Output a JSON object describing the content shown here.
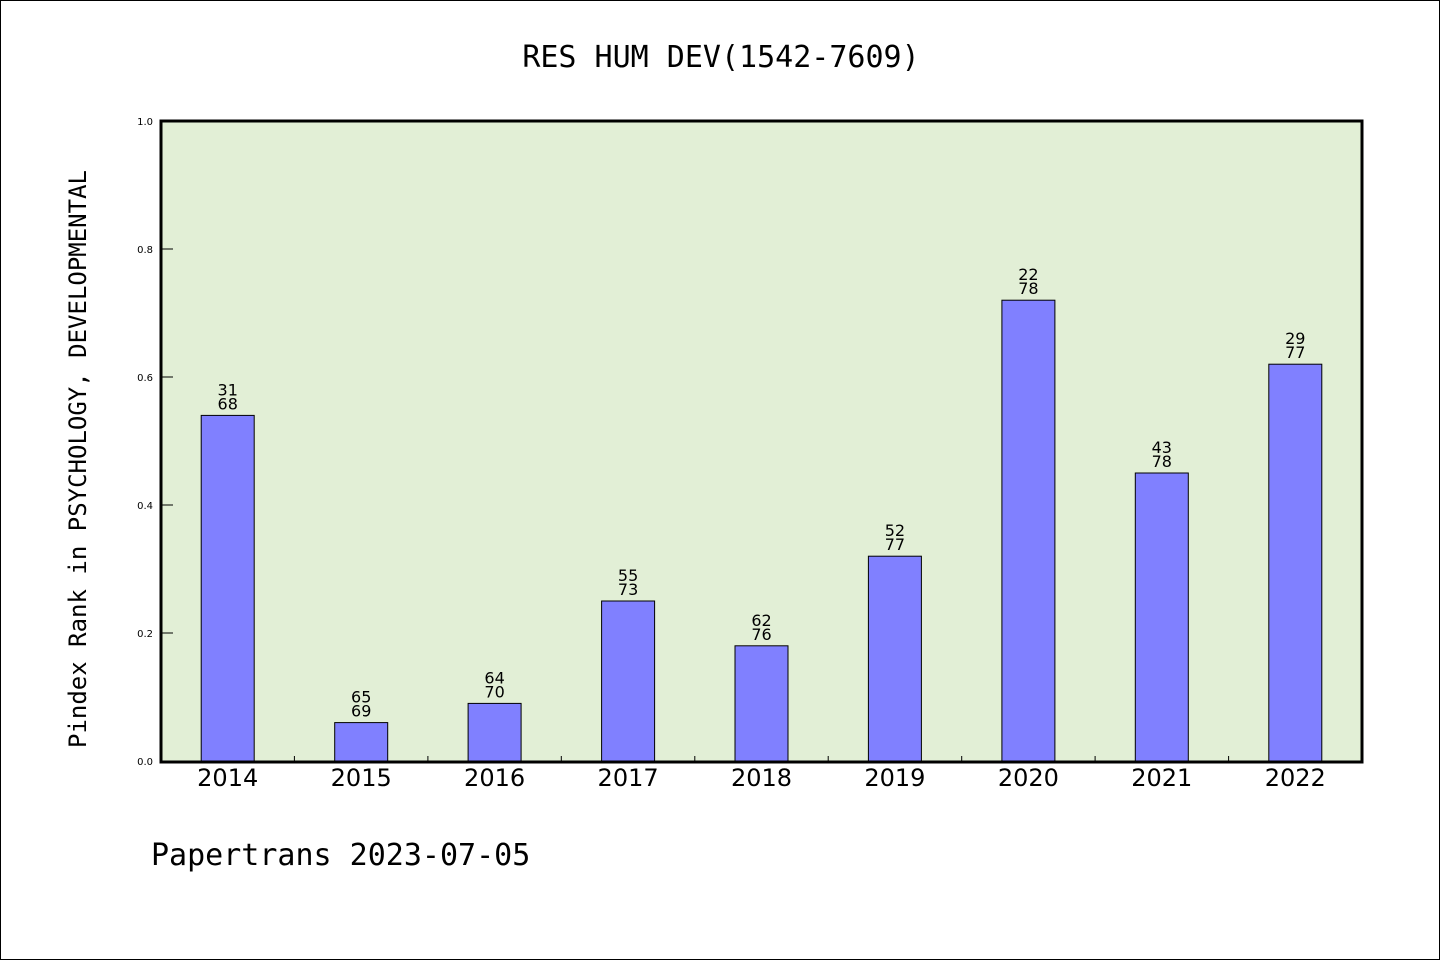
{
  "chart_data": {
    "type": "bar",
    "title": "RES HUM DEV(1542-7609)",
    "xlabel": "",
    "ylabel": "Pindex Rank in PSYCHOLOGY, DEVELOPMENTAL",
    "ylim": [
      0.0,
      1.0
    ],
    "yticks": [
      "0.0",
      "0.2",
      "0.4",
      "0.6",
      "0.8",
      "1.0"
    ],
    "categories": [
      "2014",
      "2015",
      "2016",
      "2017",
      "2018",
      "2019",
      "2020",
      "2021",
      "2022"
    ],
    "values": [
      0.54,
      0.06,
      0.09,
      0.25,
      0.18,
      0.32,
      0.72,
      0.45,
      0.62
    ],
    "bar_labels": [
      [
        "31",
        "68"
      ],
      [
        "65",
        "69"
      ],
      [
        "64",
        "70"
      ],
      [
        "55",
        "73"
      ],
      [
        "62",
        "76"
      ],
      [
        "52",
        "77"
      ],
      [
        "22",
        "78"
      ],
      [
        "43",
        "78"
      ],
      [
        "29",
        "77"
      ]
    ],
    "colors": {
      "plot_bg": "#e2efd6",
      "bar": "#8080ff",
      "axis": "#000000"
    },
    "grid": false,
    "legend": "none"
  },
  "footer": "Papertrans 2023-07-05"
}
